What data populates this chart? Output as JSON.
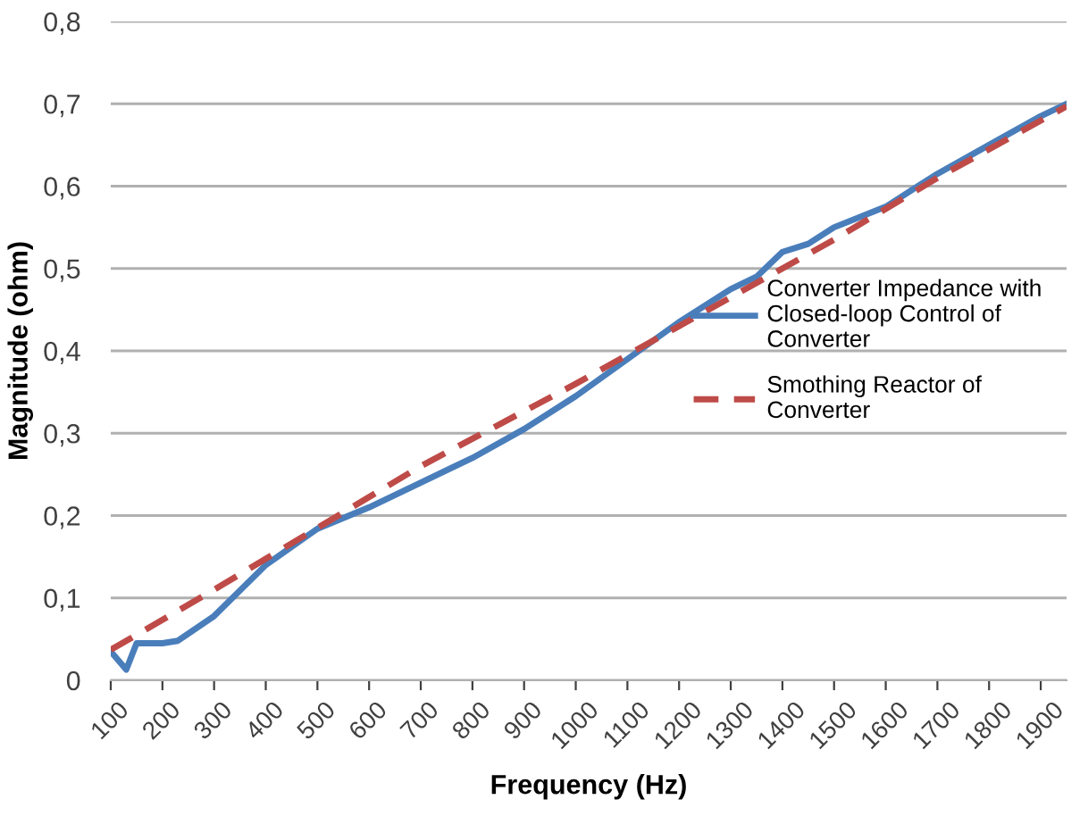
{
  "chart_data": {
    "type": "line",
    "xlabel": "Frequency (Hz)",
    "ylabel": "Magnitude (ohm)",
    "xlim": [
      100,
      1950
    ],
    "xticks": [
      100,
      200,
      300,
      400,
      500,
      600,
      700,
      800,
      900,
      1000,
      1100,
      1200,
      1300,
      1400,
      1500,
      1600,
      1700,
      1800,
      1900
    ],
    "ylim": [
      0,
      0.8
    ],
    "yticks": [
      {
        "value": 0,
        "label": "0"
      },
      {
        "value": 0.1,
        "label": "0,1"
      },
      {
        "value": 0.2,
        "label": "0,2"
      },
      {
        "value": 0.3,
        "label": "0,3"
      },
      {
        "value": 0.4,
        "label": "0,4"
      },
      {
        "value": 0.5,
        "label": "0,5"
      },
      {
        "value": 0.6,
        "label": "0,6"
      },
      {
        "value": 0.7,
        "label": "0,7"
      },
      {
        "value": 0.8,
        "label": "0,8"
      }
    ],
    "grid": "y",
    "legend": "right",
    "series": [
      {
        "name": "Converter Impedance with Closed-loop Control of Converter",
        "color": "#4a7ebb",
        "line_style": "solid",
        "x": [
          100,
          130,
          150,
          200,
          230,
          300,
          400,
          500,
          600,
          700,
          800,
          900,
          1000,
          1100,
          1200,
          1300,
          1350,
          1400,
          1450,
          1500,
          1600,
          1700,
          1800,
          1900,
          1950
        ],
        "values": [
          0.035,
          0.013,
          0.045,
          0.045,
          0.048,
          0.078,
          0.14,
          0.184,
          0.21,
          0.24,
          0.27,
          0.305,
          0.345,
          0.39,
          0.435,
          0.475,
          0.49,
          0.52,
          0.53,
          0.55,
          0.575,
          0.615,
          0.65,
          0.685,
          0.7
        ]
      },
      {
        "name": "Smothing Reactor of Converter",
        "color": "#be4b48",
        "line_style": "dashed",
        "x": [
          100,
          300,
          500,
          700,
          1000,
          1300,
          1500,
          1700,
          1950
        ],
        "values": [
          0.037,
          0.11,
          0.185,
          0.26,
          0.36,
          0.465,
          0.535,
          0.61,
          0.697
        ]
      }
    ]
  }
}
